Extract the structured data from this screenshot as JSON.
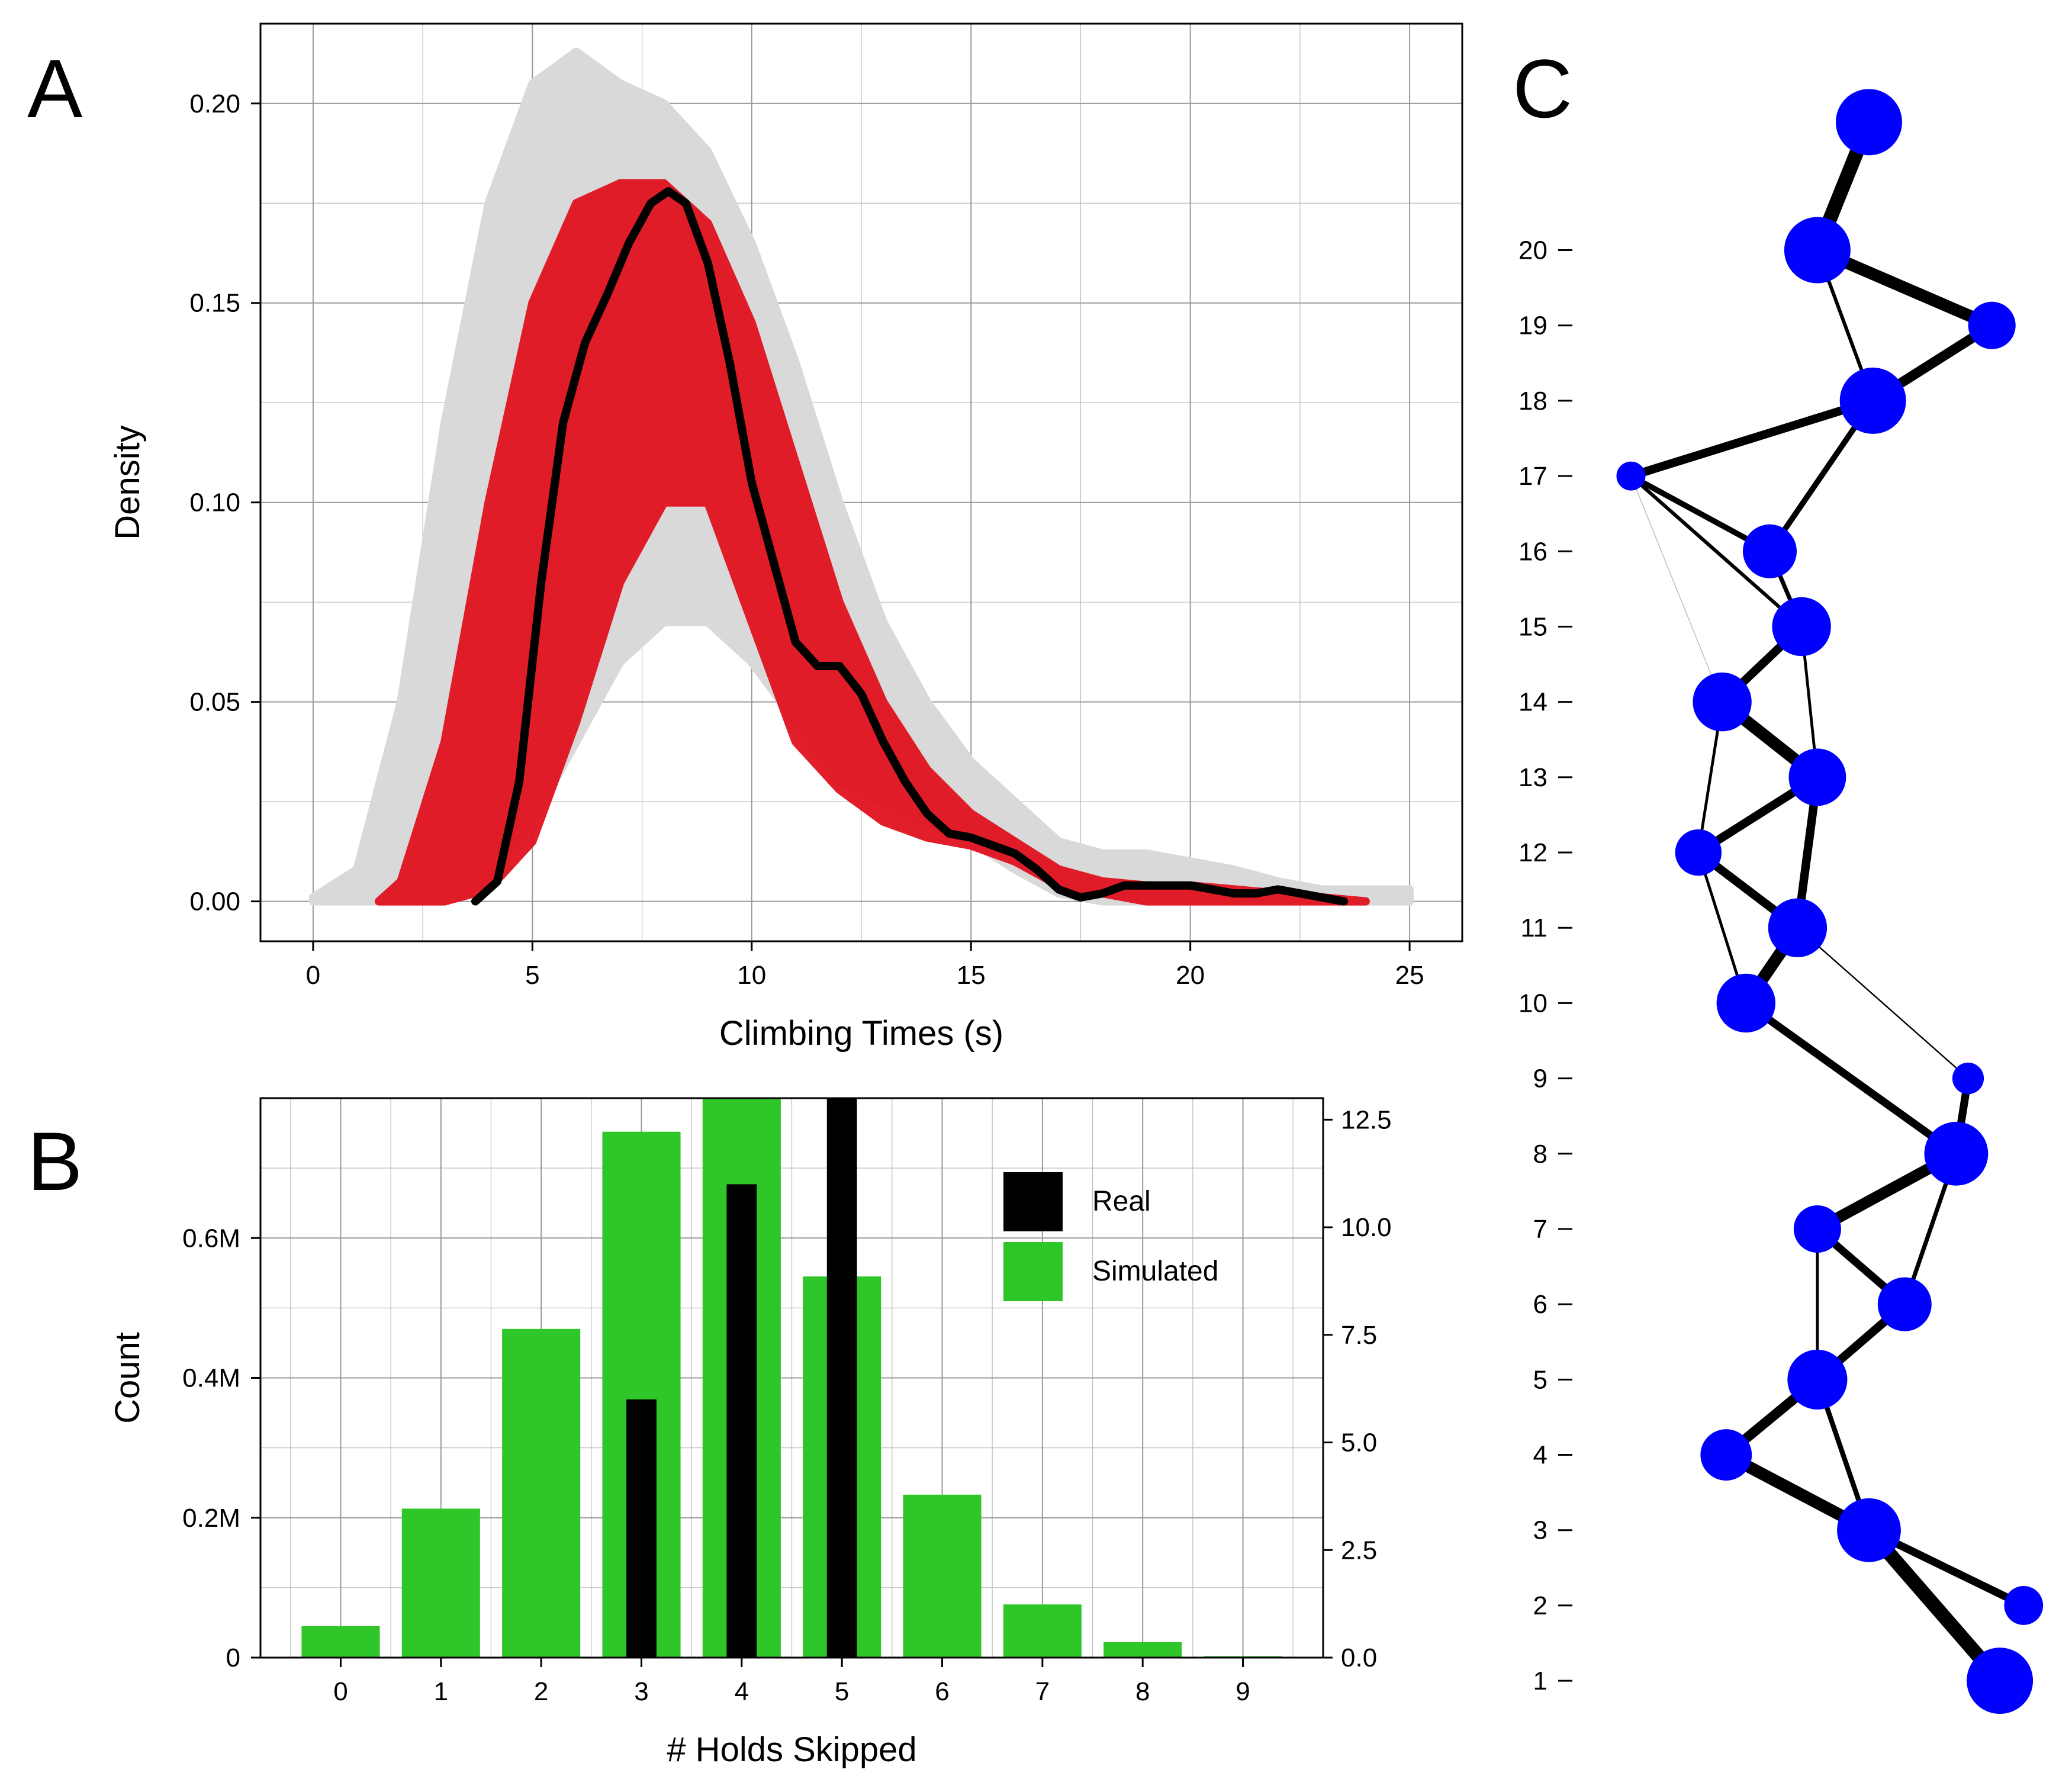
{
  "panels": {
    "a": {
      "letter": "A"
    },
    "b": {
      "letter": "B"
    },
    "c": {
      "letter": "C"
    }
  },
  "colors": {
    "grey_band": "#d9d9d9",
    "red_band": "#e0121f",
    "black": "#000000",
    "green": "#2fc62a",
    "blue": "#0000ff",
    "grid": "#bdbdbd"
  },
  "chart_data": [
    {
      "panel": "A",
      "type": "line",
      "xlabel": "Climbing Times (s)",
      "ylabel": "Density",
      "xlim": [
        -1.2,
        26.2
      ],
      "ylim": [
        -0.01,
        0.22
      ],
      "x_ticks": [
        0,
        5,
        10,
        15,
        20,
        25
      ],
      "y_ticks": [
        0.0,
        0.05,
        0.1,
        0.15,
        0.2
      ],
      "y_tick_labels": [
        "0.00",
        "0.05",
        "0.10",
        "0.15",
        "0.20"
      ],
      "grid": true,
      "bands": [
        {
          "role": "simulated-envelope-outer",
          "color": "#d9d9d9",
          "upper": [
            [
              0,
              0.001
            ],
            [
              1,
              0.008
            ],
            [
              2,
              0.05
            ],
            [
              3,
              0.12
            ],
            [
              4,
              0.175
            ],
            [
              5,
              0.205
            ],
            [
              6,
              0.213
            ],
            [
              7,
              0.205
            ],
            [
              8,
              0.2
            ],
            [
              9,
              0.188
            ],
            [
              10,
              0.165
            ],
            [
              11,
              0.135
            ],
            [
              12,
              0.1
            ],
            [
              13,
              0.07
            ],
            [
              14,
              0.05
            ],
            [
              15,
              0.035
            ],
            [
              16,
              0.025
            ],
            [
              17,
              0.015
            ],
            [
              18,
              0.012
            ],
            [
              19,
              0.012
            ],
            [
              20,
              0.01
            ],
            [
              21,
              0.008
            ],
            [
              22,
              0.005
            ],
            [
              23,
              0.003
            ],
            [
              24,
              0.003
            ],
            [
              25,
              0.003
            ]
          ],
          "lower": [
            [
              25,
              0
            ],
            [
              24,
              0
            ],
            [
              23,
              0
            ],
            [
              22,
              0
            ],
            [
              21,
              0
            ],
            [
              20,
              0
            ],
            [
              19,
              0
            ],
            [
              18,
              0
            ],
            [
              17,
              0.002
            ],
            [
              16,
              0.008
            ],
            [
              15,
              0.015
            ],
            [
              14,
              0.02
            ],
            [
              13,
              0.025
            ],
            [
              12,
              0.03
            ],
            [
              11,
              0.045
            ],
            [
              10,
              0.06
            ],
            [
              9,
              0.07
            ],
            [
              8,
              0.07
            ],
            [
              7,
              0.06
            ],
            [
              6,
              0.04
            ],
            [
              5,
              0.02
            ],
            [
              4,
              0.005
            ],
            [
              3,
              0
            ],
            [
              2,
              0
            ],
            [
              1,
              0
            ],
            [
              0,
              0
            ]
          ]
        },
        {
          "role": "simulated-envelope-inner",
          "color": "#e0121f",
          "upper": [
            [
              1.5,
              0
            ],
            [
              2,
              0.005
            ],
            [
              3,
              0.04
            ],
            [
              4,
              0.1
            ],
            [
              5,
              0.15
            ],
            [
              6,
              0.175
            ],
            [
              7,
              0.18
            ],
            [
              8,
              0.18
            ],
            [
              9,
              0.17
            ],
            [
              10,
              0.145
            ],
            [
              11,
              0.11
            ],
            [
              12,
              0.075
            ],
            [
              13,
              0.05
            ],
            [
              14,
              0.033
            ],
            [
              15,
              0.022
            ],
            [
              16,
              0.015
            ],
            [
              17,
              0.008
            ],
            [
              18,
              0.005
            ],
            [
              19,
              0.004
            ],
            [
              20,
              0.004
            ],
            [
              21,
              0.003
            ],
            [
              22,
              0.002
            ],
            [
              23,
              0.001
            ],
            [
              24,
              0
            ]
          ],
          "lower": [
            [
              24,
              0
            ],
            [
              23,
              0
            ],
            [
              22,
              0
            ],
            [
              21,
              0
            ],
            [
              20,
              0
            ],
            [
              19,
              0
            ],
            [
              18,
              0.002
            ],
            [
              17,
              0.004
            ],
            [
              16,
              0.01
            ],
            [
              15,
              0.014
            ],
            [
              14,
              0.016
            ],
            [
              13,
              0.02
            ],
            [
              12,
              0.028
            ],
            [
              11,
              0.04
            ],
            [
              10,
              0.07
            ],
            [
              9,
              0.1
            ],
            [
              8,
              0.1
            ],
            [
              7,
              0.08
            ],
            [
              6,
              0.045
            ],
            [
              5,
              0.015
            ],
            [
              4,
              0.003
            ],
            [
              3,
              0
            ],
            [
              2,
              0
            ],
            [
              1.5,
              0
            ]
          ]
        }
      ],
      "series": [
        {
          "role": "observed",
          "color": "#000000",
          "points": [
            [
              3.7,
              0
            ],
            [
              4.2,
              0.005
            ],
            [
              4.7,
              0.03
            ],
            [
              5.2,
              0.08
            ],
            [
              5.7,
              0.12
            ],
            [
              6.2,
              0.14
            ],
            [
              6.7,
              0.152
            ],
            [
              7.2,
              0.165
            ],
            [
              7.7,
              0.175
            ],
            [
              8.1,
              0.178
            ],
            [
              8.5,
              0.175
            ],
            [
              9,
              0.16
            ],
            [
              9.5,
              0.135
            ],
            [
              10,
              0.105
            ],
            [
              10.5,
              0.085
            ],
            [
              11,
              0.065
            ],
            [
              11.5,
              0.059
            ],
            [
              12,
              0.059
            ],
            [
              12.5,
              0.052
            ],
            [
              13,
              0.04
            ],
            [
              13.5,
              0.03
            ],
            [
              14,
              0.022
            ],
            [
              14.5,
              0.017
            ],
            [
              15,
              0.016
            ],
            [
              15.5,
              0.014
            ],
            [
              16,
              0.012
            ],
            [
              16.5,
              0.008
            ],
            [
              17,
              0.003
            ],
            [
              17.5,
              0.001
            ],
            [
              18,
              0.002
            ],
            [
              18.5,
              0.004
            ],
            [
              19,
              0.004
            ],
            [
              19.5,
              0.004
            ],
            [
              20,
              0.004
            ],
            [
              20.5,
              0.003
            ],
            [
              21,
              0.002
            ],
            [
              21.5,
              0.002
            ],
            [
              22,
              0.003
            ],
            [
              22.5,
              0.002
            ],
            [
              23,
              0.001
            ],
            [
              23.5,
              0
            ]
          ]
        }
      ]
    },
    {
      "panel": "B",
      "type": "bar",
      "xlabel": "# Holds Skipped",
      "ylabel": "Count",
      "categories": [
        "0",
        "1",
        "2",
        "3",
        "4",
        "5",
        "6",
        "7",
        "8",
        "9"
      ],
      "xlim": [
        -0.8,
        9.8
      ],
      "ylim_left": [
        0,
        0.8
      ],
      "ylim_right": [
        0,
        13
      ],
      "left_ticks": [
        0,
        0.2,
        0.4,
        0.6
      ],
      "left_tick_labels": [
        "0",
        "0.2M",
        "0.4M",
        "0.6M"
      ],
      "right_ticks": [
        0,
        2.5,
        5,
        7.5,
        10,
        12.5
      ],
      "right_tick_labels": [
        "0.0",
        "2.5",
        "5.0",
        "7.5",
        "10.0",
        "12.5"
      ],
      "grid": true,
      "legend_position": "top-right",
      "series": [
        {
          "name": "Simulated",
          "axis": "left",
          "color": "#2fc62a",
          "values": [
            0.045,
            0.213,
            0.47,
            0.752,
            0.8,
            0.545,
            0.233,
            0.076,
            0.022,
            0.002
          ]
        },
        {
          "name": "Real",
          "axis": "right",
          "color": "#000000",
          "values": [
            0,
            0,
            0,
            6,
            11,
            13,
            0,
            0,
            0,
            0
          ]
        }
      ]
    },
    {
      "panel": "C",
      "type": "scatter",
      "ylim": [
        0.6,
        22.3
      ],
      "xlim": [
        0,
        1
      ],
      "y_ticks": [
        1,
        2,
        3,
        4,
        5,
        6,
        7,
        8,
        9,
        10,
        11,
        12,
        13,
        14,
        15,
        16,
        17,
        18,
        19,
        20
      ],
      "y_tick_labels": [
        "1",
        "2",
        "3",
        "4",
        "5",
        "6",
        "7",
        "8",
        "9",
        "10",
        "11",
        "12",
        "13",
        "14",
        "15",
        "16",
        "17",
        "18",
        "19",
        "20"
      ],
      "nodes": [
        {
          "id": "n1",
          "x": 0.93,
          "y": 1.0,
          "size": 1.0
        },
        {
          "id": "n2",
          "x": 0.99,
          "y": 2.0,
          "size": 0.45
        },
        {
          "id": "n3",
          "x": 0.6,
          "y": 3.0,
          "size": 0.95
        },
        {
          "id": "n4",
          "x": 0.24,
          "y": 4.0,
          "size": 0.7
        },
        {
          "id": "n5",
          "x": 0.47,
          "y": 5.0,
          "size": 0.87
        },
        {
          "id": "n6",
          "x": 0.69,
          "y": 6.0,
          "size": 0.75
        },
        {
          "id": "n7",
          "x": 0.47,
          "y": 7.0,
          "size": 0.62
        },
        {
          "id": "n8",
          "x": 0.82,
          "y": 8.0,
          "size": 0.95
        },
        {
          "id": "n9",
          "x": 0.85,
          "y": 9.0,
          "size": 0.3
        },
        {
          "id": "n10",
          "x": 0.29,
          "y": 10.0,
          "size": 0.85
        },
        {
          "id": "n11",
          "x": 0.42,
          "y": 11.0,
          "size": 0.85
        },
        {
          "id": "n12",
          "x": 0.17,
          "y": 12.0,
          "size": 0.6
        },
        {
          "id": "n13",
          "x": 0.47,
          "y": 13.0,
          "size": 0.82
        },
        {
          "id": "n14",
          "x": 0.23,
          "y": 14.0,
          "size": 0.85
        },
        {
          "id": "n15",
          "x": 0.43,
          "y": 15.0,
          "size": 0.85
        },
        {
          "id": "n16",
          "x": 0.35,
          "y": 16.0,
          "size": 0.75
        },
        {
          "id": "n17",
          "x": 0.0,
          "y": 17.0,
          "size": 0.25
        },
        {
          "id": "n18",
          "x": 0.61,
          "y": 18.0,
          "size": 1.0
        },
        {
          "id": "n19",
          "x": 0.91,
          "y": 19.0,
          "size": 0.62
        },
        {
          "id": "n20",
          "x": 0.47,
          "y": 20.0,
          "size": 1.0
        },
        {
          "id": "n21",
          "x": 0.6,
          "y": 21.7,
          "size": 1.0
        }
      ],
      "edges": [
        {
          "from": "n1",
          "to": "n3",
          "weight": 1.0
        },
        {
          "from": "n2",
          "to": "n3",
          "weight": 0.55
        },
        {
          "from": "n3",
          "to": "n4",
          "weight": 0.85
        },
        {
          "from": "n3",
          "to": "n5",
          "weight": 0.35
        },
        {
          "from": "n4",
          "to": "n5",
          "weight": 0.7
        },
        {
          "from": "n5",
          "to": "n6",
          "weight": 0.6
        },
        {
          "from": "n5",
          "to": "n7",
          "weight": 0.2
        },
        {
          "from": "n6",
          "to": "n7",
          "weight": 0.55
        },
        {
          "from": "n6",
          "to": "n8",
          "weight": 0.3
        },
        {
          "from": "n7",
          "to": "n8",
          "weight": 0.8
        },
        {
          "from": "n8",
          "to": "n9",
          "weight": 0.55
        },
        {
          "from": "n8",
          "to": "n10",
          "weight": 0.55
        },
        {
          "from": "n9",
          "to": "n11",
          "weight": 0.1
        },
        {
          "from": "n10",
          "to": "n11",
          "weight": 0.85
        },
        {
          "from": "n10",
          "to": "n12",
          "weight": 0.2
        },
        {
          "from": "n11",
          "to": "n12",
          "weight": 0.6
        },
        {
          "from": "n11",
          "to": "n13",
          "weight": 0.6
        },
        {
          "from": "n12",
          "to": "n13",
          "weight": 0.6
        },
        {
          "from": "n12",
          "to": "n14",
          "weight": 0.2
        },
        {
          "from": "n13",
          "to": "n14",
          "weight": 0.85
        },
        {
          "from": "n13",
          "to": "n15",
          "weight": 0.2
        },
        {
          "from": "n14",
          "to": "n15",
          "weight": 0.6
        },
        {
          "from": "n14",
          "to": "n17",
          "weight": 0.04
        },
        {
          "from": "n15",
          "to": "n16",
          "weight": 0.3
        },
        {
          "from": "n15",
          "to": "n17",
          "weight": 0.25
        },
        {
          "from": "n16",
          "to": "n17",
          "weight": 0.4
        },
        {
          "from": "n16",
          "to": "n18",
          "weight": 0.4
        },
        {
          "from": "n17",
          "to": "n18",
          "weight": 0.6
        },
        {
          "from": "n18",
          "to": "n19",
          "weight": 0.7
        },
        {
          "from": "n18",
          "to": "n20",
          "weight": 0.25
        },
        {
          "from": "n19",
          "to": "n20",
          "weight": 0.85
        },
        {
          "from": "n20",
          "to": "n21",
          "weight": 1.0
        }
      ]
    }
  ]
}
